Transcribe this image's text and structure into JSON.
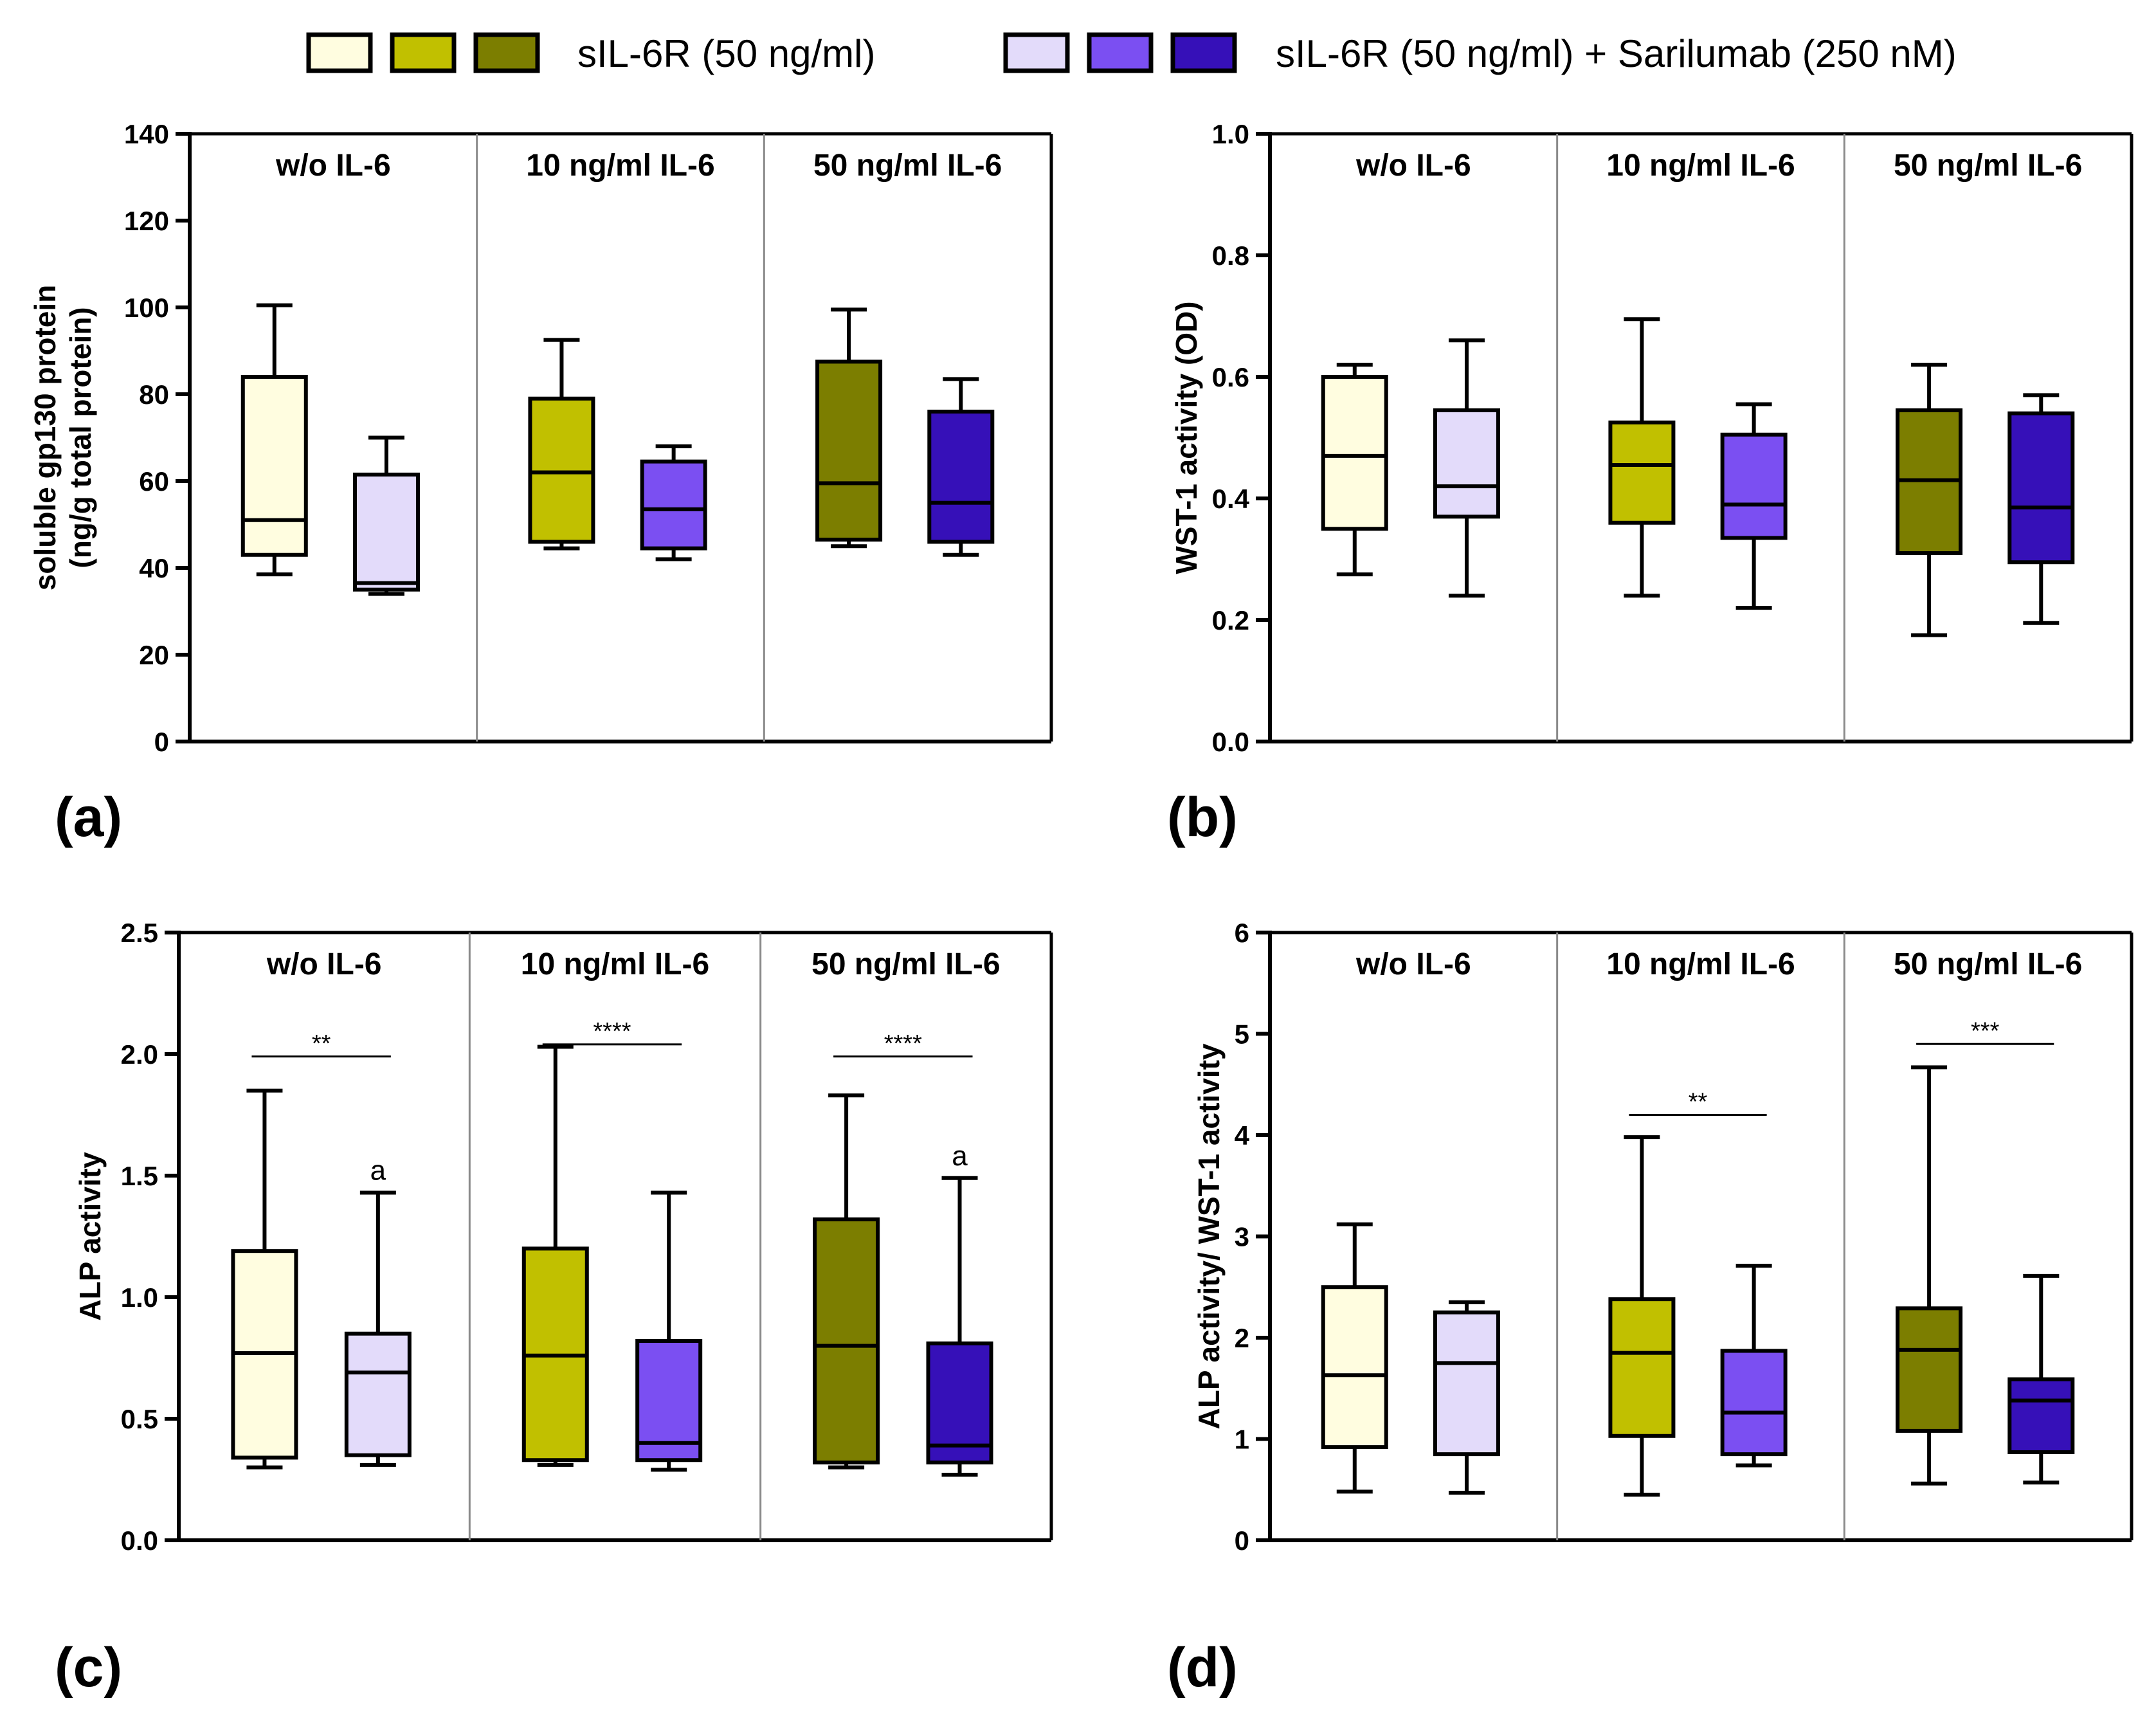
{
  "colors": {
    "light_yellow": "#FFFDE0",
    "yellow_green": "#C1C000",
    "olive": "#7C7E00",
    "light_lavender": "#E3DBFA",
    "violet": "#7B4FF2",
    "indigo": "#3610B8",
    "separator": "#8A8A8A"
  },
  "legend": {
    "group1_label": "sIL-6R (50 ng/ml)",
    "group1_colors": [
      "light_yellow",
      "yellow_green",
      "olive"
    ],
    "group2_label": "sIL-6R (50 ng/ml) + Sarilumab (250 nM)",
    "group2_colors": [
      "light_lavender",
      "violet",
      "indigo"
    ]
  },
  "chart_data": [
    {
      "type": "box",
      "panel": "(a)",
      "title": "",
      "ylabel": [
        "soluble gp130 protein",
        "(ng/g total protein)"
      ],
      "xlabel": "",
      "ylim": [
        0,
        140
      ],
      "yticks": [
        0,
        20,
        40,
        60,
        80,
        100,
        120,
        140
      ],
      "yticks_labels": [
        "0",
        "20",
        "40",
        "60",
        "80",
        "100",
        "120",
        "140"
      ],
      "groups": [
        "w/o IL-6",
        "10 ng/ml IL-6",
        "50 ng/ml IL-6"
      ],
      "boxes": [
        {
          "group": 0,
          "color": "light_yellow",
          "min": 38.5,
          "q1": 43,
          "median": 51,
          "q3": 84,
          "max": 100.5
        },
        {
          "group": 0,
          "color": "light_lavender",
          "min": 34,
          "q1": 35,
          "median": 36.5,
          "q3": 61.5,
          "max": 70
        },
        {
          "group": 1,
          "color": "yellow_green",
          "min": 44.5,
          "q1": 46,
          "median": 62,
          "q3": 79,
          "max": 92.5
        },
        {
          "group": 1,
          "color": "violet",
          "min": 42,
          "q1": 44.5,
          "median": 53.5,
          "q3": 64.5,
          "max": 68
        },
        {
          "group": 2,
          "color": "olive",
          "min": 45,
          "q1": 46.5,
          "median": 59.5,
          "q3": 87.5,
          "max": 99.5
        },
        {
          "group": 2,
          "color": "indigo",
          "min": 43,
          "q1": 46,
          "median": 55,
          "q3": 76,
          "max": 83.5
        }
      ],
      "significance": [],
      "annotations": []
    },
    {
      "type": "box",
      "panel": "(b)",
      "title": "",
      "ylabel": [
        "WST-1 activity (OD)"
      ],
      "xlabel": "",
      "ylim": [
        0,
        1.0
      ],
      "yticks": [
        0,
        0.2,
        0.4,
        0.6,
        0.8,
        1.0
      ],
      "yticks_labels": [
        "0.0",
        "0.2",
        "0.4",
        "0.6",
        "0.8",
        "1.0"
      ],
      "groups": [
        "w/o IL-6",
        "10 ng/ml IL-6",
        "50 ng/ml IL-6"
      ],
      "boxes": [
        {
          "group": 0,
          "color": "light_yellow",
          "min": 0.275,
          "q1": 0.35,
          "median": 0.47,
          "q3": 0.6,
          "max": 0.62
        },
        {
          "group": 0,
          "color": "light_lavender",
          "min": 0.24,
          "q1": 0.37,
          "median": 0.42,
          "q3": 0.545,
          "max": 0.66
        },
        {
          "group": 1,
          "color": "yellow_green",
          "min": 0.24,
          "q1": 0.36,
          "median": 0.455,
          "q3": 0.525,
          "max": 0.695
        },
        {
          "group": 1,
          "color": "violet",
          "min": 0.22,
          "q1": 0.335,
          "median": 0.39,
          "q3": 0.505,
          "max": 0.555
        },
        {
          "group": 2,
          "color": "olive",
          "min": 0.175,
          "q1": 0.31,
          "median": 0.43,
          "q3": 0.545,
          "max": 0.62
        },
        {
          "group": 2,
          "color": "indigo",
          "min": 0.195,
          "q1": 0.295,
          "median": 0.385,
          "q3": 0.54,
          "max": 0.57
        }
      ],
      "significance": [],
      "annotations": []
    },
    {
      "type": "box",
      "panel": "(c)",
      "title": "",
      "ylabel": [
        "ALP activity"
      ],
      "xlabel": "",
      "ylim": [
        0,
        2.5
      ],
      "yticks": [
        0,
        0.5,
        1.0,
        1.5,
        2.0,
        2.5
      ],
      "yticks_labels": [
        "0.0",
        "0.5",
        "1.0",
        "1.5",
        "2.0",
        "2.5"
      ],
      "groups": [
        "w/o IL-6",
        "10 ng/ml IL-6",
        "50 ng/ml IL-6"
      ],
      "boxes": [
        {
          "group": 0,
          "color": "light_yellow",
          "min": 0.3,
          "q1": 0.34,
          "median": 0.77,
          "q3": 1.19,
          "max": 1.85
        },
        {
          "group": 0,
          "color": "light_lavender",
          "min": 0.31,
          "q1": 0.35,
          "median": 0.69,
          "q3": 0.85,
          "max": 1.43
        },
        {
          "group": 1,
          "color": "yellow_green",
          "min": 0.31,
          "q1": 0.33,
          "median": 0.76,
          "q3": 1.2,
          "max": 2.03
        },
        {
          "group": 1,
          "color": "violet",
          "min": 0.29,
          "q1": 0.33,
          "median": 0.4,
          "q3": 0.82,
          "max": 1.43
        },
        {
          "group": 2,
          "color": "olive",
          "min": 0.3,
          "q1": 0.32,
          "median": 0.8,
          "q3": 1.32,
          "max": 1.83
        },
        {
          "group": 2,
          "color": "indigo",
          "min": 0.27,
          "q1": 0.32,
          "median": 0.39,
          "q3": 0.81,
          "max": 1.49
        }
      ],
      "significance": [
        {
          "group": 0,
          "level": 1.99,
          "label": "**"
        },
        {
          "group": 1,
          "level": 2.04,
          "label": "****"
        },
        {
          "group": 2,
          "level": 1.99,
          "label": "****"
        }
      ],
      "annotations": [
        {
          "box": 1,
          "label": "a"
        },
        {
          "box": 5,
          "label": "a"
        }
      ]
    },
    {
      "type": "box",
      "panel": "(d)",
      "title": "",
      "ylabel": [
        "ALP activity/ WST-1 activity"
      ],
      "xlabel": "",
      "ylim": [
        0,
        6
      ],
      "yticks": [
        0,
        1,
        2,
        3,
        4,
        5,
        6
      ],
      "yticks_labels": [
        "0",
        "1",
        "2",
        "3",
        "4",
        "5",
        "6"
      ],
      "groups": [
        "w/o IL-6",
        "10 ng/ml IL-6",
        "50 ng/ml IL-6"
      ],
      "boxes": [
        {
          "group": 0,
          "color": "light_yellow",
          "min": 0.48,
          "q1": 0.92,
          "median": 1.63,
          "q3": 2.5,
          "max": 3.12
        },
        {
          "group": 0,
          "color": "light_lavender",
          "min": 0.47,
          "q1": 0.85,
          "median": 1.75,
          "q3": 2.25,
          "max": 2.35
        },
        {
          "group": 1,
          "color": "yellow_green",
          "min": 0.45,
          "q1": 1.03,
          "median": 1.85,
          "q3": 2.38,
          "max": 3.98
        },
        {
          "group": 1,
          "color": "violet",
          "min": 0.74,
          "q1": 0.85,
          "median": 1.26,
          "q3": 1.87,
          "max": 2.71
        },
        {
          "group": 2,
          "color": "olive",
          "min": 0.56,
          "q1": 1.08,
          "median": 1.88,
          "q3": 2.29,
          "max": 4.67
        },
        {
          "group": 2,
          "color": "indigo",
          "min": 0.57,
          "q1": 0.87,
          "median": 1.38,
          "q3": 1.59,
          "max": 2.61
        }
      ],
      "significance": [
        {
          "group": 1,
          "level": 4.2,
          "label": "**"
        },
        {
          "group": 2,
          "level": 4.9,
          "label": "***"
        }
      ],
      "annotations": []
    }
  ]
}
